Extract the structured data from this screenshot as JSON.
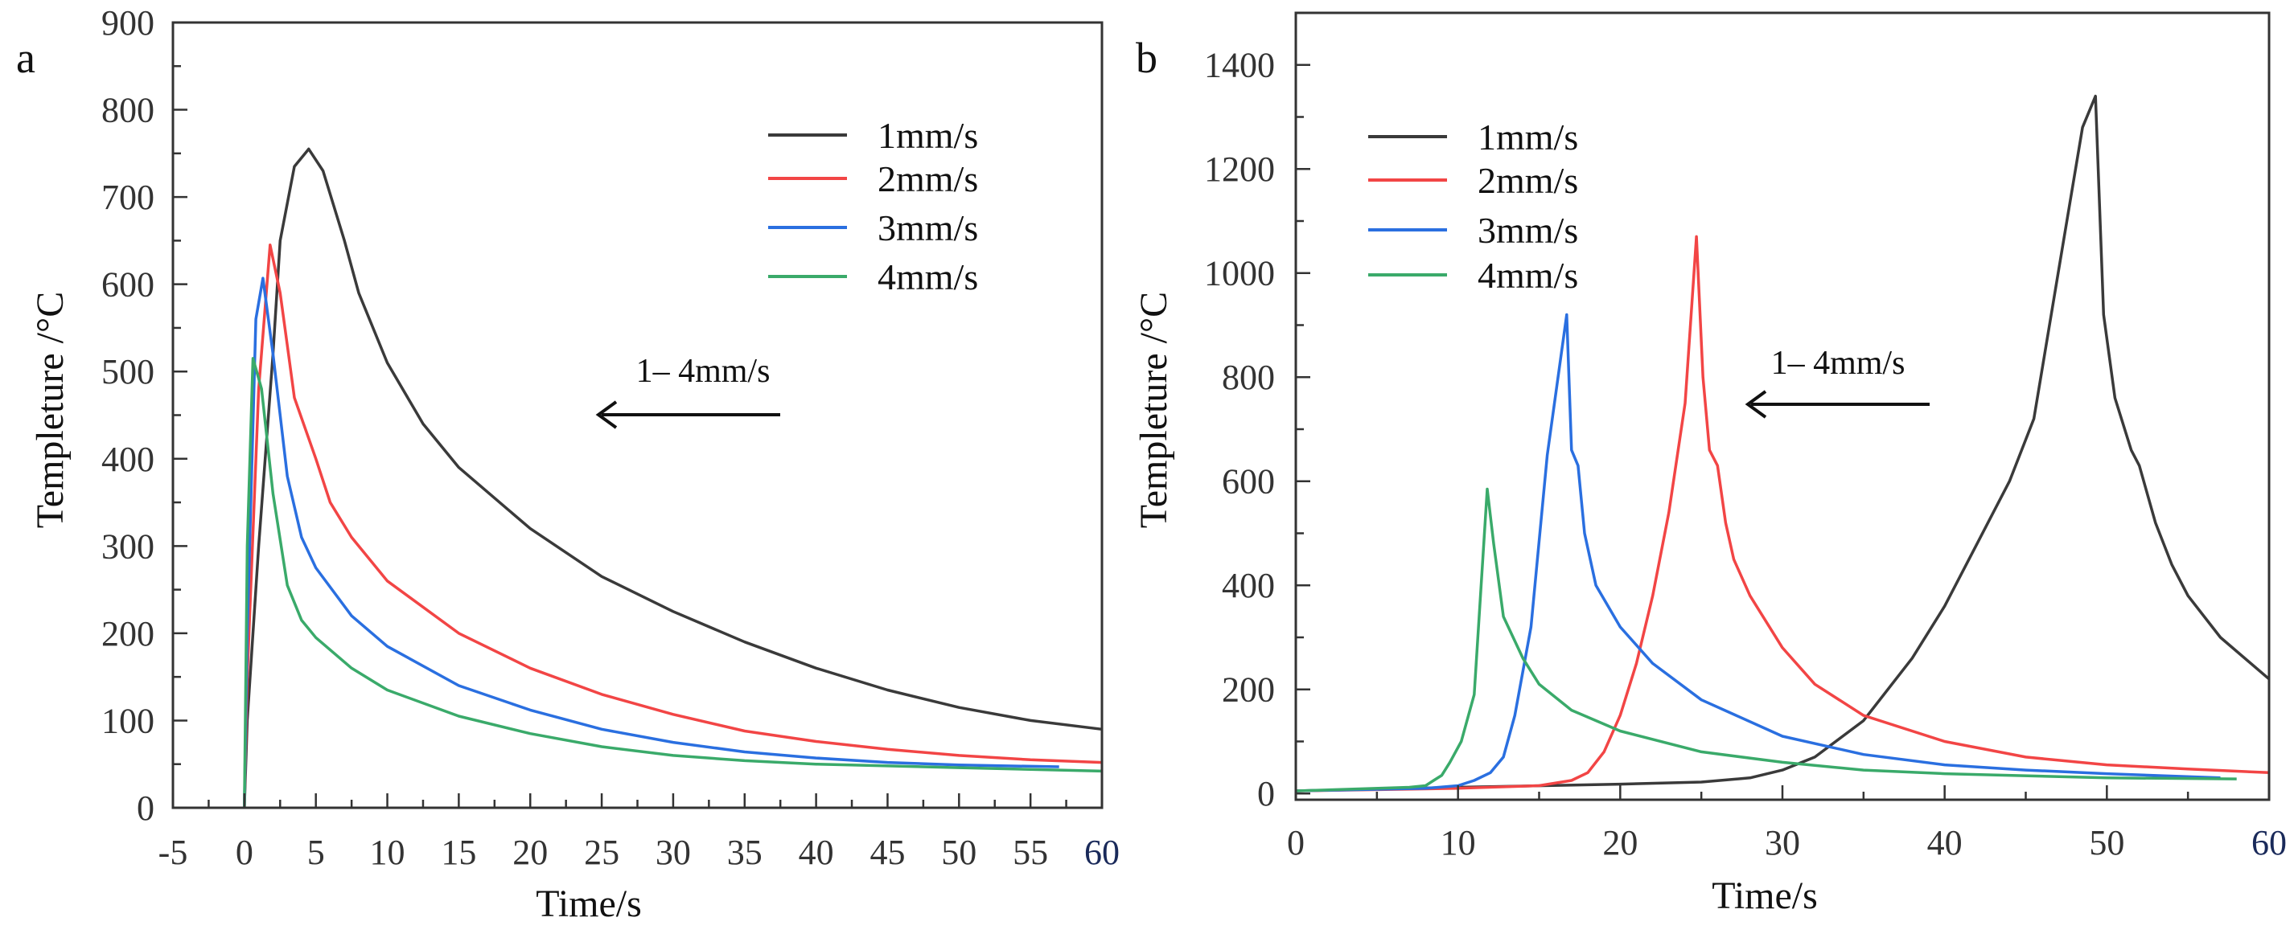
{
  "chart_data": [
    {
      "panel_label": "a",
      "type": "line",
      "title": "",
      "xlabel": "Time/s",
      "ylabel": "Templeture /°C",
      "xlim": [
        -5,
        60
      ],
      "ylim": [
        0,
        900
      ],
      "xticks": [
        "-5",
        "0",
        "5",
        "10",
        "15",
        "20",
        "25",
        "30",
        "35",
        "40",
        "45",
        "50",
        "55",
        "60"
      ],
      "yticks": [
        "0",
        "100",
        "200",
        "300",
        "400",
        "500",
        "600",
        "700",
        "800",
        "900"
      ],
      "grid": false,
      "legend_position": "top-right",
      "annotation": "1– 4mm/s",
      "annotation_arrow": "left",
      "series": [
        {
          "name": "1mm/s",
          "color": "#3a3a3a",
          "x": [
            0,
            0.2,
            1,
            2,
            2.5,
            3.5,
            4.5,
            5.5,
            7,
            8,
            10,
            12.5,
            15,
            20,
            25,
            30,
            35,
            40,
            45,
            50,
            55,
            60
          ],
          "y": [
            0,
            100,
            300,
            520,
            650,
            735,
            755,
            730,
            650,
            590,
            510,
            440,
            390,
            320,
            265,
            225,
            190,
            160,
            135,
            115,
            100,
            90
          ]
        },
        {
          "name": "2mm/s",
          "color": "#f24545",
          "x": [
            0,
            0.2,
            1,
            1.8,
            2.5,
            3,
            3.5,
            5,
            6,
            7.5,
            10,
            15,
            20,
            25,
            30,
            35,
            40,
            45,
            50,
            55,
            60
          ],
          "y": [
            0,
            150,
            480,
            645,
            590,
            530,
            470,
            400,
            350,
            310,
            260,
            200,
            160,
            130,
            107,
            88,
            76,
            67,
            60,
            55,
            52
          ]
        },
        {
          "name": "3mm/s",
          "color": "#2a6fe0",
          "x": [
            0,
            0.2,
            0.8,
            1.3,
            2,
            3,
            4,
            5,
            7.5,
            10,
            15,
            20,
            25,
            30,
            35,
            40,
            45,
            50,
            57
          ],
          "y": [
            0,
            200,
            560,
            607,
            520,
            380,
            310,
            275,
            220,
            185,
            140,
            112,
            90,
            75,
            64,
            57,
            52,
            49,
            47
          ]
        },
        {
          "name": "4mm/s",
          "color": "#3aaa6a",
          "x": [
            0,
            0.2,
            0.6,
            1.2,
            2,
            3,
            4,
            5,
            7.5,
            10,
            15,
            20,
            25,
            30,
            35,
            40,
            50,
            60
          ],
          "y": [
            0,
            300,
            515,
            480,
            360,
            255,
            215,
            195,
            160,
            135,
            105,
            85,
            70,
            60,
            54,
            50,
            46,
            42
          ]
        }
      ]
    },
    {
      "panel_label": "b",
      "type": "line",
      "title": "",
      "xlabel": "Time/s",
      "ylabel": "Templeture /°C",
      "xlim": [
        0,
        60
      ],
      "ylim": [
        -12,
        1500
      ],
      "xticks": [
        "0",
        "10",
        "20",
        "30",
        "40",
        "50",
        "60"
      ],
      "yticks": [
        "0",
        "200",
        "400",
        "600",
        "800",
        "1000",
        "1200",
        "1400"
      ],
      "grid": false,
      "legend_position": "top-left",
      "annotation": "1– 4mm/s",
      "annotation_arrow": "left",
      "series": [
        {
          "name": "1mm/s",
          "color": "#3a3a3a",
          "x": [
            0,
            10,
            20,
            25,
            28,
            30,
            32,
            35,
            38,
            40,
            42,
            44,
            45.5,
            47,
            48.5,
            49.3,
            49.8,
            50.5,
            51.5,
            52,
            53,
            54,
            55,
            57,
            60
          ],
          "y": [
            5,
            12,
            18,
            22,
            30,
            45,
            70,
            140,
            260,
            360,
            480,
            600,
            720,
            1000,
            1280,
            1340,
            920,
            760,
            660,
            630,
            520,
            440,
            380,
            300,
            220
          ]
        },
        {
          "name": "2mm/s",
          "color": "#f24545",
          "x": [
            0,
            10,
            15,
            17,
            18,
            19,
            20,
            21,
            22,
            23,
            24,
            24.7,
            25.1,
            25.5,
            26,
            26.5,
            27,
            28,
            30,
            32,
            35,
            40,
            45,
            50,
            55,
            60
          ],
          "y": [
            5,
            10,
            15,
            25,
            40,
            80,
            150,
            250,
            380,
            540,
            750,
            1070,
            800,
            660,
            630,
            520,
            450,
            380,
            280,
            210,
            150,
            100,
            70,
            55,
            47,
            40
          ]
        },
        {
          "name": "3mm/s",
          "color": "#2a6fe0",
          "x": [
            0,
            8,
            10,
            11,
            12,
            12.8,
            13.5,
            14.5,
            15.5,
            16.7,
            17,
            17.4,
            17.8,
            18.5,
            20,
            22,
            25,
            30,
            35,
            40,
            45,
            50,
            57
          ],
          "y": [
            5,
            10,
            15,
            25,
            40,
            70,
            150,
            320,
            650,
            920,
            660,
            630,
            500,
            400,
            320,
            250,
            180,
            110,
            75,
            55,
            45,
            38,
            30
          ]
        },
        {
          "name": "4mm/s",
          "color": "#3aaa6a",
          "x": [
            0,
            7,
            8,
            8.5,
            9,
            9.5,
            10.2,
            11,
            11.8,
            12.2,
            12.8,
            14,
            15,
            17,
            20,
            25,
            30,
            35,
            40,
            50,
            58
          ],
          "y": [
            5,
            12,
            15,
            25,
            35,
            60,
            100,
            190,
            585,
            480,
            340,
            260,
            210,
            160,
            120,
            80,
            60,
            45,
            38,
            30,
            28
          ]
        }
      ]
    }
  ],
  "colors": {
    "axis": "#333333",
    "last_x_tick": "#1a2a5a"
  }
}
